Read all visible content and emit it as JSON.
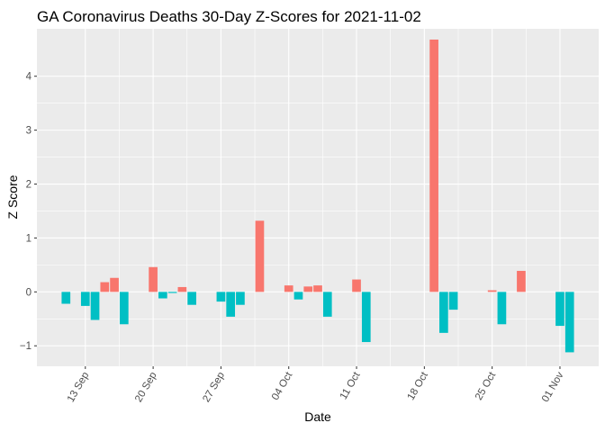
{
  "chart_data": {
    "type": "bar",
    "title": "GA Coronavirus Deaths 30-Day Z-Scores for 2021-11-02",
    "xlabel": "Date",
    "ylabel": "Z Score",
    "ylim": [
      -1.38,
      4.88
    ],
    "y_ticks": [
      -1,
      0,
      1,
      2,
      3,
      4
    ],
    "y_tick_labels": [
      "−1",
      "0",
      "1",
      "2",
      "3",
      "4"
    ],
    "x_ticks": [
      {
        "date": "2021-09-13",
        "label": "13 Sep"
      },
      {
        "date": "2021-09-20",
        "label": "20 Sep"
      },
      {
        "date": "2021-09-27",
        "label": "27 Sep"
      },
      {
        "date": "2021-10-04",
        "label": "04 Oct"
      },
      {
        "date": "2021-10-11",
        "label": "11 Oct"
      },
      {
        "date": "2021-10-18",
        "label": "18 Oct"
      },
      {
        "date": "2021-10-25",
        "label": "25 Oct"
      },
      {
        "date": "2021-11-01",
        "label": "01 Nov"
      }
    ],
    "xlim": [
      "2021-09-08",
      "2021-11-05"
    ],
    "colors": {
      "positive": "#F8766D",
      "negative": "#00BFC4",
      "panel": "#EBEBEB",
      "grid": "#FFFFFF"
    },
    "series": [
      {
        "date": "2021-09-11",
        "value": -0.22
      },
      {
        "date": "2021-09-12",
        "value": 0.0
      },
      {
        "date": "2021-09-13",
        "value": -0.26
      },
      {
        "date": "2021-09-14",
        "value": -0.52
      },
      {
        "date": "2021-09-15",
        "value": 0.18
      },
      {
        "date": "2021-09-16",
        "value": 0.26
      },
      {
        "date": "2021-09-17",
        "value": -0.6
      },
      {
        "date": "2021-09-18",
        "value": 0.0
      },
      {
        "date": "2021-09-19",
        "value": 0.0
      },
      {
        "date": "2021-09-20",
        "value": 0.46
      },
      {
        "date": "2021-09-21",
        "value": -0.12
      },
      {
        "date": "2021-09-22",
        "value": -0.02
      },
      {
        "date": "2021-09-23",
        "value": 0.09
      },
      {
        "date": "2021-09-24",
        "value": -0.24
      },
      {
        "date": "2021-09-25",
        "value": 0.0
      },
      {
        "date": "2021-09-26",
        "value": 0.0
      },
      {
        "date": "2021-09-27",
        "value": -0.18
      },
      {
        "date": "2021-09-28",
        "value": -0.46
      },
      {
        "date": "2021-09-29",
        "value": -0.24
      },
      {
        "date": "2021-09-30",
        "value": 0.0
      },
      {
        "date": "2021-10-01",
        "value": 1.32
      },
      {
        "date": "2021-10-02",
        "value": 0.0
      },
      {
        "date": "2021-10-03",
        "value": 0.0
      },
      {
        "date": "2021-10-04",
        "value": 0.12
      },
      {
        "date": "2021-10-05",
        "value": -0.14
      },
      {
        "date": "2021-10-06",
        "value": 0.1
      },
      {
        "date": "2021-10-07",
        "value": 0.12
      },
      {
        "date": "2021-10-08",
        "value": -0.46
      },
      {
        "date": "2021-10-09",
        "value": 0.0
      },
      {
        "date": "2021-10-10",
        "value": 0.0
      },
      {
        "date": "2021-10-11",
        "value": 0.23
      },
      {
        "date": "2021-10-12",
        "value": -0.93
      },
      {
        "date": "2021-10-13",
        "value": 0.0
      },
      {
        "date": "2021-10-14",
        "value": 0.0
      },
      {
        "date": "2021-10-15",
        "value": 0.0
      },
      {
        "date": "2021-10-16",
        "value": 0.0
      },
      {
        "date": "2021-10-17",
        "value": 0.0
      },
      {
        "date": "2021-10-18",
        "value": 0.0
      },
      {
        "date": "2021-10-19",
        "value": 4.68
      },
      {
        "date": "2021-10-20",
        "value": -0.76
      },
      {
        "date": "2021-10-21",
        "value": -0.33
      },
      {
        "date": "2021-10-22",
        "value": 0.0
      },
      {
        "date": "2021-10-23",
        "value": 0.0
      },
      {
        "date": "2021-10-24",
        "value": 0.0
      },
      {
        "date": "2021-10-25",
        "value": 0.03
      },
      {
        "date": "2021-10-26",
        "value": -0.6
      },
      {
        "date": "2021-10-27",
        "value": 0.0
      },
      {
        "date": "2021-10-28",
        "value": 0.39
      },
      {
        "date": "2021-10-29",
        "value": 0.0
      },
      {
        "date": "2021-10-30",
        "value": 0.0
      },
      {
        "date": "2021-10-31",
        "value": 0.0
      },
      {
        "date": "2021-11-01",
        "value": -0.63
      },
      {
        "date": "2021-11-02",
        "value": -1.12
      }
    ]
  }
}
